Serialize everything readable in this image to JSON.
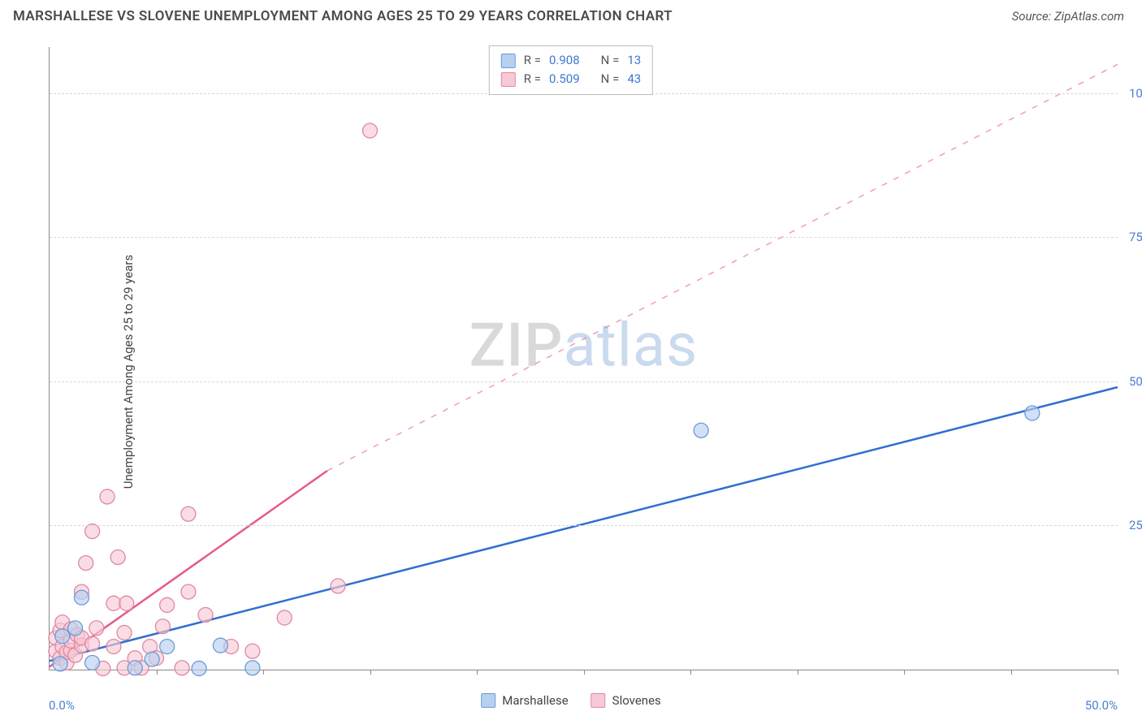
{
  "header": {
    "title": "MARSHALLESE VS SLOVENE UNEMPLOYMENT AMONG AGES 25 TO 29 YEARS CORRELATION CHART",
    "source_prefix": "Source: ",
    "source_name": "ZipAtlas.com"
  },
  "axes": {
    "y_label": "Unemployment Among Ages 25 to 29 years",
    "x_min_label": "0.0%",
    "x_max_label": "50.0%",
    "xlim": [
      0,
      50
    ],
    "ylim": [
      0,
      108
    ],
    "y_ticks": [
      25,
      50,
      75,
      100
    ],
    "y_tick_labels": [
      "25.0%",
      "50.0%",
      "75.0%",
      "100.0%"
    ],
    "x_tick_step": 5,
    "grid_color": "#d8d8d8",
    "axis_color": "#888888",
    "tick_label_color": "#4a7fd6",
    "label_fontsize": 15
  },
  "series": {
    "marshallese": {
      "label": "Marshallese",
      "fill_color": "#b8d0ef",
      "stroke_color": "#6b9bd8",
      "line_color": "#2f6fd0",
      "R": "0.908",
      "N": "13",
      "marker_radius": 9,
      "line_width": 2.5,
      "trend": {
        "x1": 0,
        "y1": 1.5,
        "x2_solid": 50,
        "y2_solid": 49,
        "dashed": false
      },
      "points": [
        [
          0.5,
          1.0
        ],
        [
          0.6,
          5.8
        ],
        [
          1.2,
          7.2
        ],
        [
          1.5,
          12.5
        ],
        [
          2.0,
          1.2
        ],
        [
          4.0,
          0.3
        ],
        [
          4.8,
          1.8
        ],
        [
          5.5,
          4.0
        ],
        [
          7.0,
          0.2
        ],
        [
          8.0,
          4.2
        ],
        [
          9.5,
          0.3
        ],
        [
          30.5,
          41.5
        ],
        [
          46.0,
          44.5
        ]
      ]
    },
    "slovenes": {
      "label": "Slovenes",
      "fill_color": "#f7c9d6",
      "stroke_color": "#e088a2",
      "line_color": "#e75a8b",
      "R": "0.509",
      "N": "43",
      "marker_radius": 9,
      "line_width": 2.5,
      "trend": {
        "x1": 0,
        "y1": 0.5,
        "x2_solid": 13.0,
        "y2_solid": 34.5,
        "x2_dash": 50,
        "y2_dash": 105
      },
      "points": [
        [
          0.3,
          3.2
        ],
        [
          0.3,
          5.5
        ],
        [
          0.5,
          6.8
        ],
        [
          0.5,
          2.0
        ],
        [
          0.6,
          4.0
        ],
        [
          0.6,
          8.2
        ],
        [
          0.8,
          1.2
        ],
        [
          0.8,
          3.0
        ],
        [
          1.0,
          3.3
        ],
        [
          1.0,
          5.0
        ],
        [
          1.0,
          7.0
        ],
        [
          1.2,
          2.5
        ],
        [
          1.3,
          6.0
        ],
        [
          1.5,
          4.2
        ],
        [
          1.5,
          5.5
        ],
        [
          1.5,
          13.5
        ],
        [
          1.7,
          18.5
        ],
        [
          2.0,
          4.5
        ],
        [
          2.0,
          24.0
        ],
        [
          2.2,
          7.2
        ],
        [
          2.5,
          0.2
        ],
        [
          2.7,
          30.0
        ],
        [
          3.0,
          4.0
        ],
        [
          3.0,
          11.5
        ],
        [
          3.2,
          19.5
        ],
        [
          3.5,
          0.3
        ],
        [
          3.5,
          6.4
        ],
        [
          3.6,
          11.5
        ],
        [
          4.0,
          2.0
        ],
        [
          4.3,
          0.3
        ],
        [
          4.7,
          4.0
        ],
        [
          5.0,
          2.0
        ],
        [
          5.3,
          7.5
        ],
        [
          5.5,
          11.2
        ],
        [
          6.2,
          0.3
        ],
        [
          6.5,
          13.5
        ],
        [
          6.5,
          27.0
        ],
        [
          7.3,
          9.5
        ],
        [
          8.5,
          4.0
        ],
        [
          9.5,
          3.2
        ],
        [
          11.0,
          9.0
        ],
        [
          13.5,
          14.5
        ],
        [
          15.0,
          93.5
        ]
      ]
    }
  },
  "bottom_legend": {
    "items": [
      {
        "label": "Marshallese",
        "fill": "#b8d0ef",
        "stroke": "#6b9bd8"
      },
      {
        "label": "Slovenes",
        "fill": "#f7c9d6",
        "stroke": "#e088a2"
      }
    ]
  },
  "top_legend": {
    "rows": [
      {
        "fill": "#b8d0ef",
        "stroke": "#6b9bd8",
        "R_label": "R =",
        "R": "0.908",
        "N_label": "N =",
        "N": "13"
      },
      {
        "fill": "#f7c9d6",
        "stroke": "#e088a2",
        "R_label": "R =",
        "R": "0.509",
        "N_label": "N =",
        "N": "43"
      }
    ]
  },
  "watermark": {
    "zip": "ZIP",
    "atlas": "atlas"
  },
  "background_color": "#ffffff"
}
